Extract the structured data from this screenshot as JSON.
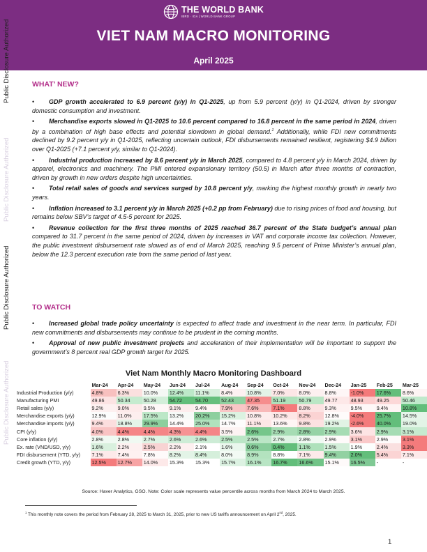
{
  "header": {
    "org_name": "THE WORLD BANK",
    "org_sub": "IBRD · IDA | WORLD BANK GROUP",
    "title": "VIET NAM MACRO MONITORING",
    "date": "April 2025"
  },
  "side_labels": {
    "disclosure": "Public Disclosure Authorized"
  },
  "whats_new": {
    "heading": "WHAT’ NEW?",
    "bullets": [
      {
        "bold": "GDP growth accelerated to 6.9 percent (y/y) in Q1-2025",
        "rest": ", up from 5.9 percent (y/y) in Q1-2024, driven by stronger domestic consumption and investment."
      },
      {
        "bold": "Merchandise exports slowed in Q1-2025 to 10.6 percent compared to 16.8 percent in the same period in 2024",
        "rest": ", driven by a combination of high base effects and potential slowdown in global demand.",
        "sup": "1",
        "rest2": " Additionally, while FDI new commitments declined by 9.2 percent y/y in Q1-2025, reflecting uncertain outlook, FDI disbursements remained resilient, registering $4.9 billion over Q1-2025 (+7.1 percent y/y, similar to Q1-2024)."
      },
      {
        "bold": "Industrial production increased by 8.6 percent y/y in March 2025",
        "rest": ", compared to 4.8 percent y/y in March 2024, driven by apparel, electronics and machinery. The PMI entered expansionary territory (50.5) in March after three months of contraction, driven by growth in new orders despite high uncertainties."
      },
      {
        "bold": "Total retail sales of goods and services surged by 10.8 percent y/y",
        "rest": ", marking the highest monthly growth in nearly two years."
      },
      {
        "bold": "Inflation increased to 3.1 percent y/y in March 2025 (+0.2 pp from February)",
        "rest": " due to rising prices of food and housing, but remains below SBV’s target of 4.5-5 percent for 2025."
      },
      {
        "bold": "Revenue collection for the first three months of 2025 reached 36.7 percent of the State budget’s annual plan",
        "rest": " compared to 31.7 percent in the same period of 2024, driven by increases in VAT and corporate income tax collection. However, the public investment disbursement rate slowed as of end of March 2025, reaching 9.5 percent of Prime Minister’s annual plan, below the 12.3 percent execution rate from the same period of last year."
      }
    ]
  },
  "to_watch": {
    "heading": "TO WATCH",
    "bullets": [
      {
        "bold": "Increased global trade policy uncertainty",
        "rest": " is expected to affect trade and investment in the near term. In particular, FDI new commitments and disbursements may continue to be prudent in the coming months."
      },
      {
        "bold": "Approval of new public investment projects",
        "rest": " and acceleration of their implementation will be important to support the government’s 8 percent real GDP growth target for 2025."
      }
    ]
  },
  "dashboard": {
    "title": "Viet Nam Monthly Macro Monitoring Dashboard",
    "months": [
      "Mar-24",
      "Apr-24",
      "May-24",
      "Jun-24",
      "Jul-24",
      "Aug-24",
      "Sep-24",
      "Oct-24",
      "Nov-24",
      "Dec-24",
      "Jan-25",
      "Feb-25",
      "Mar-25"
    ],
    "rows": [
      {
        "label": "Industrial Production (y/y)",
        "cells": [
          {
            "t": "4.8%",
            "c": "#f8c0bf"
          },
          {
            "t": "6.3%",
            "c": "#fbe0df"
          },
          {
            "t": "10.0%",
            "c": "#f5f8f5"
          },
          {
            "t": "12.4%",
            "c": "#bde8c9"
          },
          {
            "t": "11.1%",
            "c": "#d8f0de"
          },
          {
            "t": "8.4%",
            "c": "#fdf1f1"
          },
          {
            "t": "10.8%",
            "c": "#e3f4e7"
          },
          {
            "t": "7.0%",
            "c": "#fce6e6"
          },
          {
            "t": "8.0%",
            "c": "#fdf0f0"
          },
          {
            "t": "8.8%",
            "c": "#fef6f6"
          },
          {
            "t": "-1.0%",
            "c": "#f4797a"
          },
          {
            "t": "17.6%",
            "c": "#63be7b"
          },
          {
            "t": "8.6%",
            "c": "#fef4f4"
          }
        ]
      },
      {
        "label": "Manufacturing PMI",
        "cells": [
          {
            "t": "49.86",
            "c": "#fce3e3"
          },
          {
            "t": "50.34",
            "c": "#c5ebcf"
          },
          {
            "t": "50.28",
            "c": "#d2eed9"
          },
          {
            "t": "54.72",
            "c": "#63be7b"
          },
          {
            "t": "54.70",
            "c": "#66bf7d"
          },
          {
            "t": "52.43",
            "c": "#8fd09f"
          },
          {
            "t": "47.35",
            "c": "#f68d8d"
          },
          {
            "t": "51.19",
            "c": "#aee1bb"
          },
          {
            "t": "50.79",
            "c": "#bae6c5"
          },
          {
            "t": "49.77",
            "c": "#fde8e8"
          },
          {
            "t": "48.93",
            "c": "#fbcccc"
          },
          {
            "t": "49.25",
            "c": "#fcd8d8"
          },
          {
            "t": "50.46",
            "c": "#c1e9cc"
          }
        ]
      },
      {
        "label": "Retail sales (y/y)",
        "cells": [
          {
            "t": "9.2%",
            "c": "#fdf0f0"
          },
          {
            "t": "9.0%",
            "c": "#fdeaea"
          },
          {
            "t": "9.5%",
            "c": "#fef7f7"
          },
          {
            "t": "9.1%",
            "c": "#fdeded"
          },
          {
            "t": "9.4%",
            "c": "#fef4f4"
          },
          {
            "t": "7.9%",
            "c": "#f9c6c6"
          },
          {
            "t": "7.6%",
            "c": "#f8b9b9"
          },
          {
            "t": "7.1%",
            "c": "#f47b7c"
          },
          {
            "t": "8.8%",
            "c": "#fce2e2"
          },
          {
            "t": "9.3%",
            "c": "#fef2f2"
          },
          {
            "t": "9.5%",
            "c": "#fef7f7"
          },
          {
            "t": "9.4%",
            "c": "#fef4f4"
          },
          {
            "t": "10.8%",
            "c": "#63be7b"
          }
        ]
      },
      {
        "label": "Merchandise exports (y/y)",
        "cells": [
          {
            "t": "12.9%",
            "c": "#fcfcfc"
          },
          {
            "t": "11.0%",
            "c": "#fdeeee"
          },
          {
            "t": "17.5%",
            "c": "#bce7c7"
          },
          {
            "t": "13.2%",
            "c": "#f6faf7"
          },
          {
            "t": "20.2%",
            "c": "#8dcf9e"
          },
          {
            "t": "15.2%",
            "c": "#dcf2e1"
          },
          {
            "t": "10.8%",
            "c": "#fdecec"
          },
          {
            "t": "10.2%",
            "c": "#fde6e6"
          },
          {
            "t": "8.2%",
            "c": "#fbd3d3"
          },
          {
            "t": "12.8%",
            "c": "#fefbfb"
          },
          {
            "t": "-4.0%",
            "c": "#f47b7c"
          },
          {
            "t": "25.7%",
            "c": "#63be7b"
          },
          {
            "t": "14.5%",
            "c": "#e5f5e9"
          }
        ]
      },
      {
        "label": "Merchandise imports (y/y)",
        "cells": [
          {
            "t": "9.4%",
            "c": "#fcdede"
          },
          {
            "t": "18.8%",
            "c": "#e4f4e8"
          },
          {
            "t": "29.9%",
            "c": "#8ccf9d"
          },
          {
            "t": "14.4%",
            "c": "#fefafa"
          },
          {
            "t": "25.0%",
            "c": "#b0e2bd"
          },
          {
            "t": "14.7%",
            "c": "#fdfcfc"
          },
          {
            "t": "11.1%",
            "c": "#fde6e6"
          },
          {
            "t": "13.6%",
            "c": "#fef5f5"
          },
          {
            "t": "9.8%",
            "c": "#fce1e1"
          },
          {
            "t": "19.2%",
            "c": "#e1f3e5"
          },
          {
            "t": "-2.6%",
            "c": "#f47b7c"
          },
          {
            "t": "40.0%",
            "c": "#63be7b"
          },
          {
            "t": "19.0%",
            "c": "#e2f4e6"
          }
        ]
      },
      {
        "label": "CPI (y/y)",
        "cells": [
          {
            "t": "4.0%",
            "c": "#f9c3c3"
          },
          {
            "t": "4.4%",
            "c": "#f58587"
          },
          {
            "t": "4.4%",
            "c": "#f58587"
          },
          {
            "t": "4.3%",
            "c": "#f69394"
          },
          {
            "t": "4.4%",
            "c": "#f58587"
          },
          {
            "t": "3.5%",
            "c": "#fdf3f3"
          },
          {
            "t": "2.6%",
            "c": "#76c68b"
          },
          {
            "t": "2.9%",
            "c": "#a6dcb4"
          },
          {
            "t": "2.8%",
            "c": "#96d3a6"
          },
          {
            "t": "2.9%",
            "c": "#a6dcb4"
          },
          {
            "t": "3.6%",
            "c": "#fde4e4"
          },
          {
            "t": "2.9%",
            "c": "#a6dcb4"
          },
          {
            "t": "3.1%",
            "c": "#c6eacf"
          }
        ]
      },
      {
        "label": "Core inflation (y/y)",
        "cells": [
          {
            "t": "2.8%",
            "c": "#f0f9f2"
          },
          {
            "t": "2.8%",
            "c": "#f0f9f2"
          },
          {
            "t": "2.7%",
            "c": "#dff3e4"
          },
          {
            "t": "2.6%",
            "c": "#cdecd6"
          },
          {
            "t": "2.6%",
            "c": "#cdecd6"
          },
          {
            "t": "2.5%",
            "c": "#bbe6c6"
          },
          {
            "t": "2.5%",
            "c": "#bbe6c6"
          },
          {
            "t": "2.7%",
            "c": "#dff3e4"
          },
          {
            "t": "2.8%",
            "c": "#f0f9f2"
          },
          {
            "t": "2.9%",
            "c": "#fefafa"
          },
          {
            "t": "3.1%",
            "c": "#fac9c9"
          },
          {
            "t": "2.9%",
            "c": "#fefafa"
          },
          {
            "t": "3.1%",
            "c": "#f47b7c"
          }
        ]
      },
      {
        "label": "Ex. rate (VND/USD, y/y)",
        "cells": [
          {
            "t": "1.6%",
            "c": "#d9f0de"
          },
          {
            "t": "2.2%",
            "c": "#fdf0f0"
          },
          {
            "t": "2.5%",
            "c": "#f8d3d3"
          },
          {
            "t": "2.2%",
            "c": "#fdf0f0"
          },
          {
            "t": "2.1%",
            "c": "#ffffff"
          },
          {
            "t": "1.6%",
            "c": "#eaf7ed"
          },
          {
            "t": "0.6%",
            "c": "#88cd9b"
          },
          {
            "t": "0.4%",
            "c": "#63be7b"
          },
          {
            "t": "1.1%",
            "c": "#aee1bb"
          },
          {
            "t": "1.5%",
            "c": "#d3eed9"
          },
          {
            "t": "1.9%",
            "c": "#fcfefd"
          },
          {
            "t": "2.4%",
            "c": "#fae0e0"
          },
          {
            "t": "3.3%",
            "c": "#f47b7c"
          }
        ]
      },
      {
        "label": "FDI disbursement (YTD, y/y)",
        "cells": [
          {
            "t": "7.1%",
            "c": "#fdeaea"
          },
          {
            "t": "7.4%",
            "c": "#fef1f1"
          },
          {
            "t": "7.8%",
            "c": "#fefafa"
          },
          {
            "t": "8.2%",
            "c": "#e3f4e7"
          },
          {
            "t": "8.4%",
            "c": "#d5efdb"
          },
          {
            "t": "8.0%",
            "c": "#f2faf4"
          },
          {
            "t": "8.9%",
            "c": "#b3e3bf"
          },
          {
            "t": "8.8%",
            "c": "#baе6c5"
          },
          {
            "t": "7.1%",
            "c": "#fdeaea"
          },
          {
            "t": "9.4%",
            "c": "#92d1a2"
          },
          {
            "t": "2.0%",
            "c": "#63be7b"
          },
          {
            "t": "5.4%",
            "c": "#fbd4d4"
          },
          {
            "t": "7.1%",
            "c": "#fdeaea"
          }
        ]
      },
      {
        "label": "Credit growth (YTD, y/y)",
        "cells": [
          {
            "t": "12.5%",
            "c": "#f47b7c"
          },
          {
            "t": "12.7%",
            "c": "#f7a3a4"
          },
          {
            "t": "14.0%",
            "c": "#fde9e9"
          },
          {
            "t": "15.3%",
            "c": "#ffffff"
          },
          {
            "t": "15.3%",
            "c": "#ffffff"
          },
          {
            "t": "15.7%",
            "c": "#dcf2e2"
          },
          {
            "t": "16.1%",
            "c": "#b8e5c4"
          },
          {
            "t": "16.7%",
            "c": "#63be7b"
          },
          {
            "t": "16.6%",
            "c": "#71c487"
          },
          {
            "t": "15.1%",
            "c": "#fefafa"
          },
          {
            "t": "16.5%",
            "c": "#7fc994"
          },
          {
            "t": "-",
            "c": "#ffffff"
          },
          {
            "t": "-",
            "c": "#ffffff"
          }
        ]
      }
    ],
    "source": "Source: Haver Analytics, GSO. Note: Color scale represents value percentile across months from March 2024 to March 2025."
  },
  "footnote": {
    "marker": "1",
    "text": " This monthly note covers the period from February 28, 2025 to March 31, 2025, prior to new US tariffs announcement on April 2",
    "sup": "nd",
    "end": ", 2025."
  },
  "page_number": "1",
  "colors": {
    "banner": "#7c2d82",
    "heading": "#b32f8a"
  }
}
